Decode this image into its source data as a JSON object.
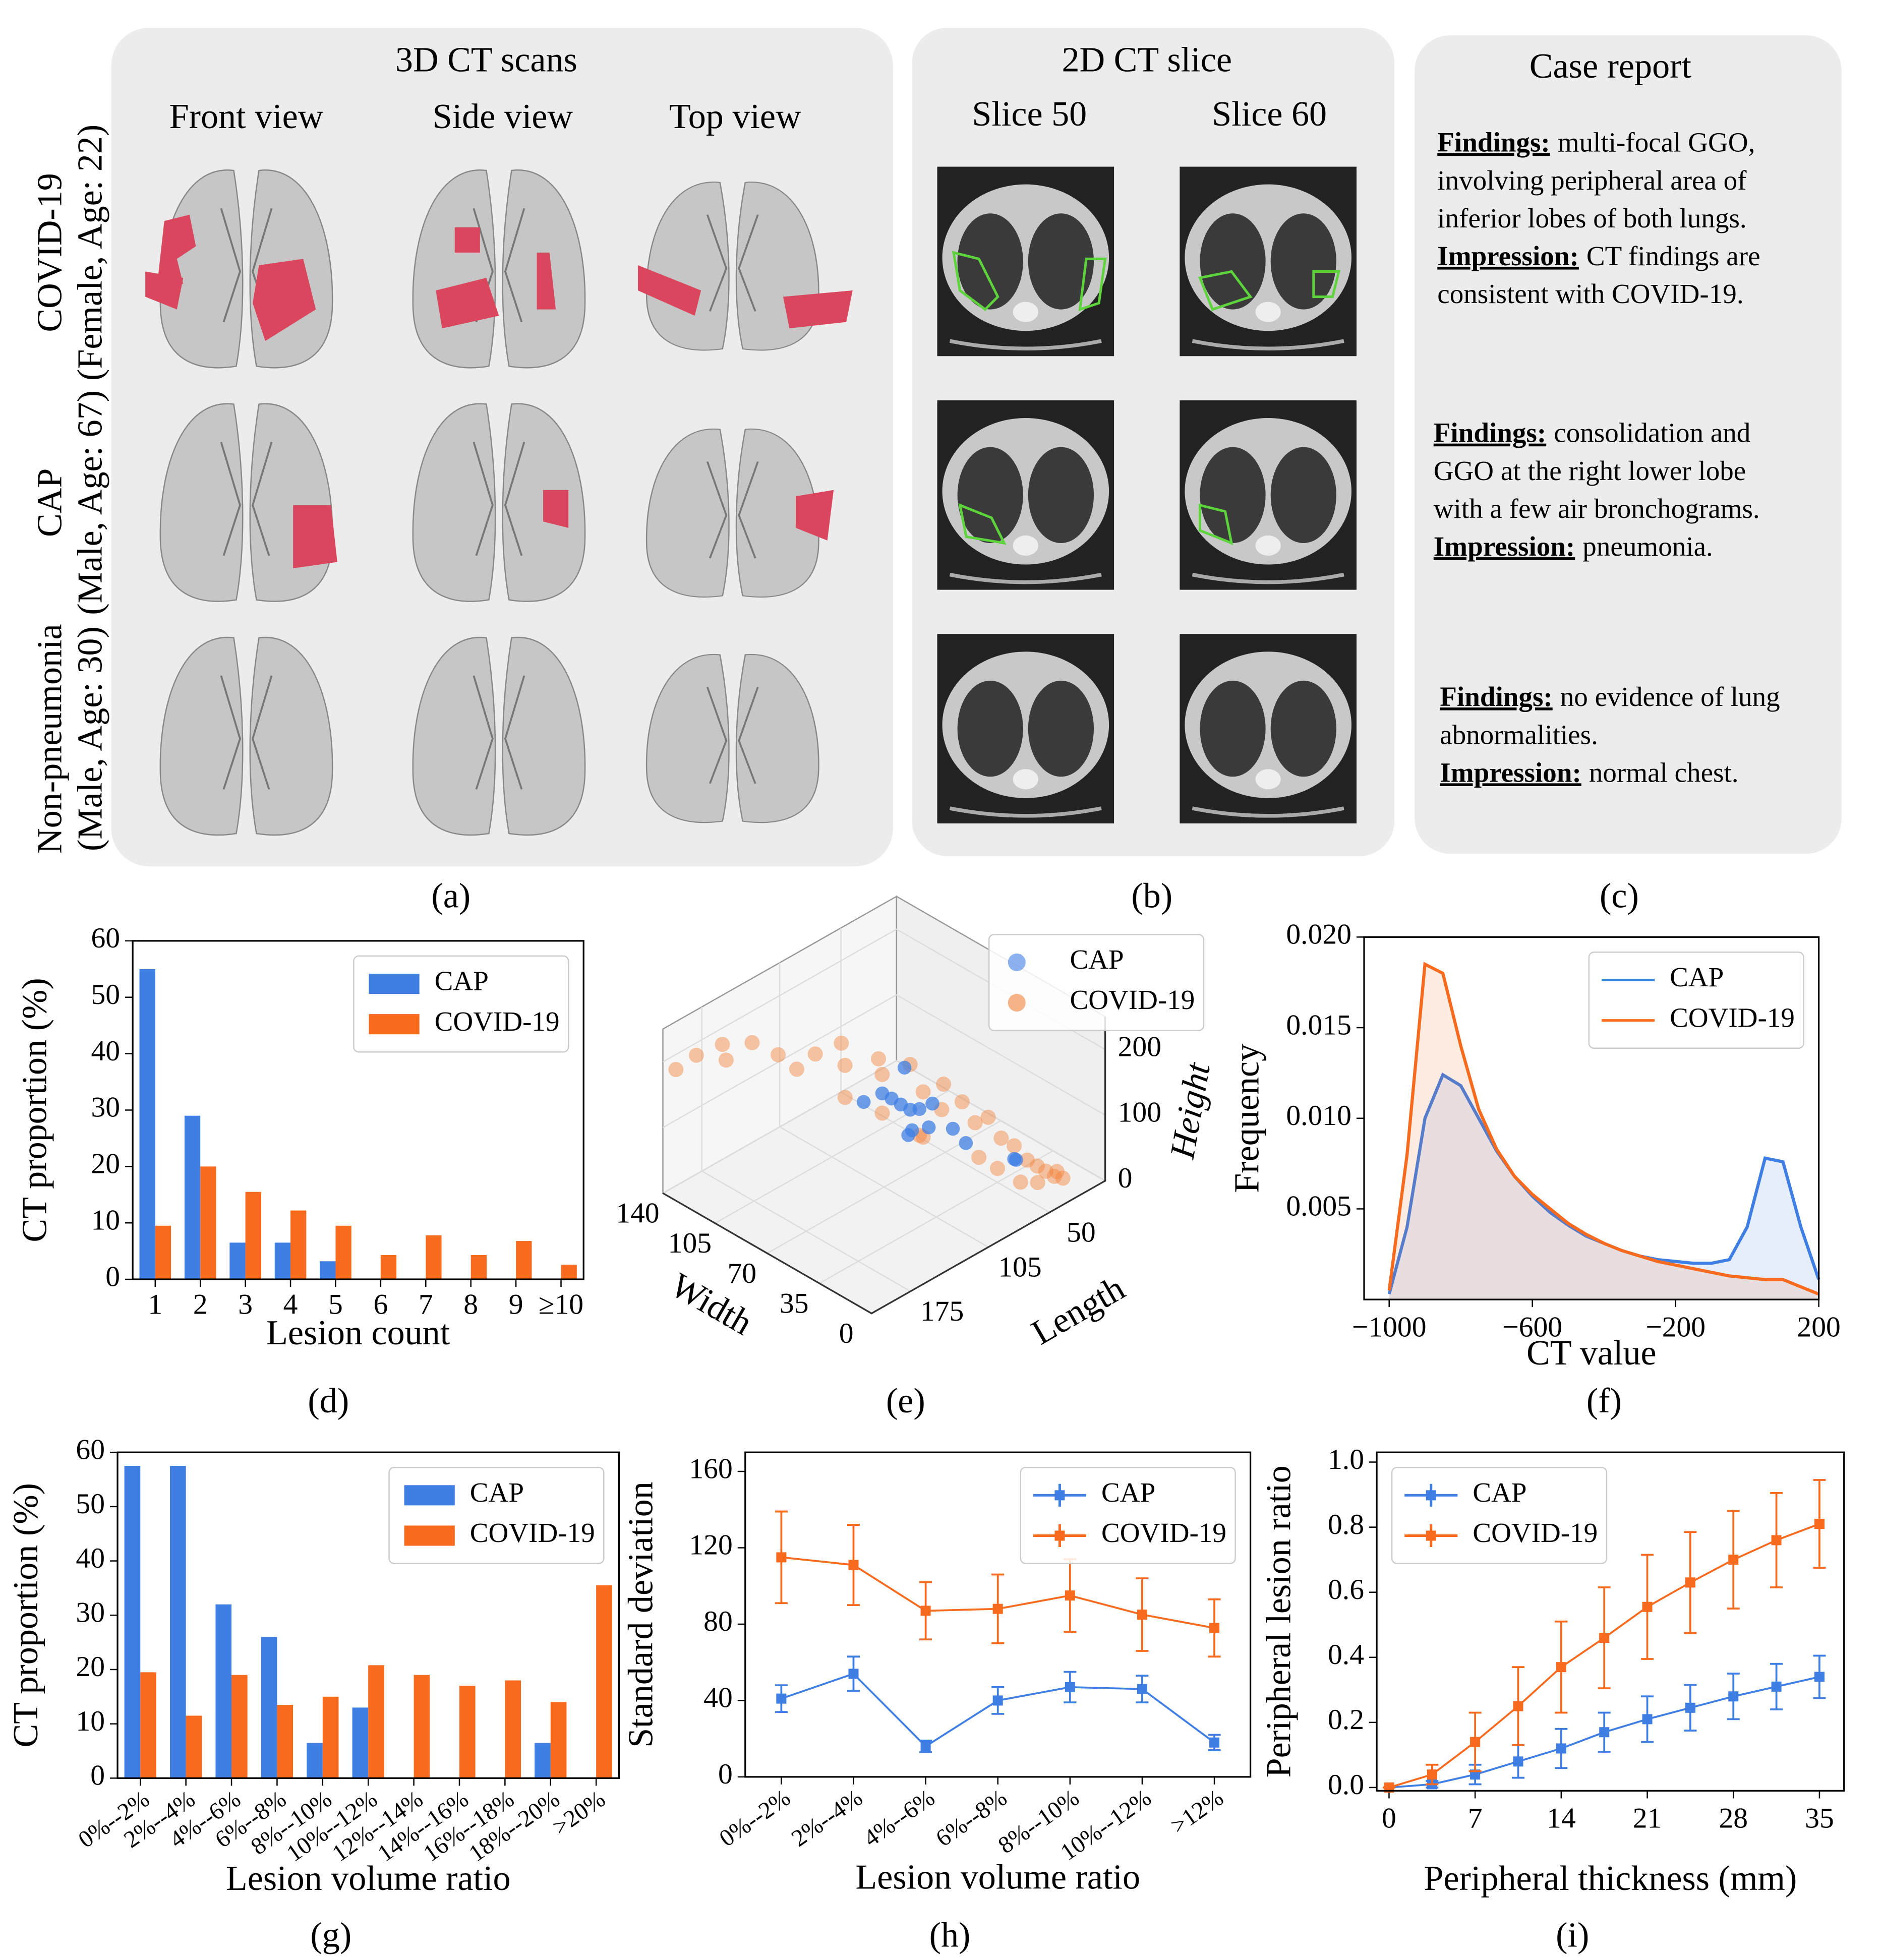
{
  "panels": {
    "a": {
      "title": "3D CT scans",
      "views": [
        "Front view",
        "Side view",
        "Top view"
      ],
      "caption": "(a)"
    },
    "rows": [
      {
        "label": "COVID-19",
        "patient": "(Female, Age: 22)"
      },
      {
        "label": "CAP",
        "patient": "(Male, Age: 67)"
      },
      {
        "label": "Non-pneumonia",
        "patient": "(Male, Age: 30)"
      }
    ],
    "b": {
      "title": "2D CT slice",
      "slices": [
        "Slice 50",
        "Slice 60"
      ],
      "caption": "(b)"
    },
    "c": {
      "title": "Case report",
      "caption": "(c)",
      "reports": [
        {
          "findings_label": "Findings:",
          "findings": [
            "multi-focal GGO,",
            "involving peripheral area of",
            "inferior lobes of both lungs."
          ],
          "impression_label": "Impression:",
          "impression": [
            "CT findings are",
            "consistent with COVID-19."
          ]
        },
        {
          "findings_label": "Findings:",
          "findings": [
            "consolidation and",
            "GGO at the right lower lobe",
            "with a few air bronchograms."
          ],
          "impression_label": "Impression:",
          "impression": [
            "pneumonia."
          ]
        },
        {
          "findings_label": "Findings:",
          "findings": [
            "no evidence of lung",
            "abnormalities."
          ],
          "impression_label": "Impression:",
          "impression": [
            "normal chest."
          ]
        }
      ]
    }
  },
  "chart_data": [
    {
      "type": "bar",
      "caption": "(d)",
      "xlabel": "Lesion count",
      "ylabel": "CT proportion (%)",
      "categories": [
        "1",
        "2",
        "3",
        "4",
        "5",
        "6",
        "7",
        "8",
        "9",
        "≥10"
      ],
      "series": [
        {
          "name": "CAP",
          "color": "#3f7fe4",
          "values": [
            55,
            29,
            6.5,
            6.5,
            3.2,
            0,
            0,
            0,
            0,
            0
          ]
        },
        {
          "name": "COVID-19",
          "color": "#f86a1d",
          "values": [
            9.5,
            20,
            15.5,
            12.2,
            9.5,
            4.3,
            7.8,
            4.3,
            6.8,
            2.6
          ]
        }
      ],
      "ylim": [
        0,
        60
      ],
      "yticks": [
        0,
        10,
        20,
        30,
        40,
        50,
        60
      ],
      "legend": "upper right"
    },
    {
      "type": "scatter3d",
      "caption": "(e)",
      "xlabel": "Length",
      "ylabel": "Width",
      "zlabel": "Height",
      "xlim": [
        0,
        210
      ],
      "xticks": [
        50,
        105,
        175
      ],
      "ylim": [
        0,
        140
      ],
      "yticks": [
        0,
        35,
        70,
        105,
        140
      ],
      "zlim": [
        0,
        250
      ],
      "zticks": [
        0,
        100,
        200
      ],
      "legend": "upper right",
      "series": [
        {
          "name": "CAP",
          "color": "#3f7fe4",
          "x": [
            120,
            110,
            100,
            115,
            105,
            95,
            125,
            90,
            130,
            100,
            85,
            60,
            55,
            110,
            120
          ],
          "y": [
            60,
            55,
            50,
            45,
            40,
            45,
            50,
            35,
            65,
            60,
            30,
            15,
            20,
            50,
            40
          ],
          "z": [
            170,
            150,
            140,
            160,
            130,
            150,
            180,
            120,
            160,
            190,
            100,
            70,
            60,
            110,
            140
          ]
        },
        {
          "name": "COVID-19",
          "color": "#f4823a",
          "x": [
            200,
            205,
            190,
            180,
            170,
            160,
            150,
            140,
            130,
            120,
            110,
            100,
            95,
            90,
            85,
            80,
            75,
            70,
            65,
            60,
            55,
            50,
            45,
            40,
            35,
            30,
            60,
            50,
            70,
            80,
            120,
            140,
            100,
            110,
            30
          ],
          "y": [
            125,
            135,
            115,
            120,
            110,
            100,
            95,
            90,
            80,
            85,
            70,
            75,
            60,
            55,
            45,
            50,
            40,
            35,
            30,
            25,
            20,
            15,
            12,
            10,
            8,
            6,
            12,
            8,
            20,
            25,
            60,
            70,
            50,
            40,
            10
          ],
          "z": [
            220,
            190,
            240,
            200,
            230,
            215,
            190,
            210,
            230,
            180,
            200,
            160,
            190,
            150,
            170,
            120,
            140,
            110,
            120,
            90,
            80,
            60,
            50,
            40,
            30,
            25,
            40,
            35,
            60,
            80,
            140,
            170,
            100,
            120,
            30
          ]
        }
      ]
    },
    {
      "type": "line",
      "fill": true,
      "caption": "(f)",
      "xlabel": "CT value",
      "ylabel": "Frequency",
      "x": [
        -1000,
        -950,
        -900,
        -850,
        -800,
        -750,
        -700,
        -650,
        -600,
        -550,
        -500,
        -450,
        -400,
        -350,
        -300,
        -250,
        -200,
        -150,
        -100,
        -50,
        0,
        50,
        100,
        150,
        200
      ],
      "series": [
        {
          "name": "CAP",
          "color": "#3f7fe4",
          "values": [
            0.0003,
            0.004,
            0.01,
            0.0124,
            0.0118,
            0.01,
            0.0082,
            0.0068,
            0.0057,
            0.0048,
            0.0041,
            0.0035,
            0.0031,
            0.0027,
            0.0024,
            0.0022,
            0.0021,
            0.002,
            0.002,
            0.0022,
            0.004,
            0.0078,
            0.0076,
            0.004,
            0.0011
          ]
        },
        {
          "name": "COVID-19",
          "color": "#f86a1d",
          "values": [
            0.0005,
            0.008,
            0.0185,
            0.018,
            0.014,
            0.0105,
            0.0083,
            0.0068,
            0.0058,
            0.005,
            0.0042,
            0.0036,
            0.0031,
            0.0027,
            0.0024,
            0.0021,
            0.0019,
            0.0017,
            0.0015,
            0.0013,
            0.0012,
            0.0011,
            0.0011,
            0.0007,
            0.0003
          ]
        }
      ],
      "xlim": [
        -1070,
        200
      ],
      "xticks": [
        {
          "value": -1000,
          "label": "−1000"
        },
        {
          "value": -600,
          "label": "−600"
        },
        {
          "value": -200,
          "label": "−200"
        },
        200
      ],
      "ylim": [
        0,
        0.02
      ],
      "yticks": [
        0.005,
        {
          "value": 0.01,
          "label": "0.010"
        },
        0.015,
        {
          "value": 0.02,
          "label": "0.020"
        }
      ],
      "legend": "upper right"
    },
    {
      "type": "bar",
      "caption": "(g)",
      "xlabel": "Lesion volume ratio",
      "ylabel": "CT proportion (%)",
      "categories": [
        "0%--2%",
        "2%--4%",
        "4%--6%",
        "6%--8%",
        "8%--10%",
        "10%--12%",
        "12%--14%",
        "14%--16%",
        "16%--18%",
        "18%--20%",
        ">20%"
      ],
      "series": [
        {
          "name": "CAP",
          "color": "#3f7fe4",
          "values": [
            57.5,
            57.5,
            32,
            26,
            6.5,
            13,
            0,
            0,
            0,
            6.5,
            0
          ]
        },
        {
          "name": "COVID-19",
          "color": "#f86a1d",
          "values": [
            19.5,
            11.5,
            19,
            13.5,
            15,
            20.8,
            19,
            17,
            18,
            14,
            35.5
          ]
        }
      ],
      "ylim": [
        0,
        60
      ],
      "yticks": [
        0,
        10,
        20,
        30,
        40,
        50,
        60
      ],
      "legend": "upper right"
    },
    {
      "type": "errorbar",
      "caption": "(h)",
      "xlabel": "Lesion volume ratio",
      "ylabel": "Standard deviation",
      "categories": [
        "0%--2%",
        "2%--4%",
        "4%--6%",
        "6%--8%",
        "8%--10%",
        "10%--12%",
        ">12%"
      ],
      "series": [
        {
          "name": "CAP",
          "color": "#3f7fe4",
          "values": [
            41,
            54,
            16,
            40,
            47,
            46,
            18
          ],
          "errors": [
            7,
            9,
            3,
            7,
            8,
            7,
            4
          ]
        },
        {
          "name": "COVID-19",
          "color": "#f86a1d",
          "values": [
            115,
            111,
            87,
            88,
            95,
            85,
            78
          ],
          "errors": [
            24,
            21,
            15,
            18,
            19,
            19,
            15
          ]
        }
      ],
      "ylim": [
        0,
        170
      ],
      "yticks": [
        0,
        40,
        80,
        120,
        160
      ],
      "legend": "upper right"
    },
    {
      "type": "errorbar",
      "caption": "(i)",
      "xlabel": "Peripheral thickness (mm)",
      "ylabel": "Peripheral lesion ratio",
      "x": [
        0,
        3.5,
        7,
        10.5,
        14,
        17.5,
        21,
        24.5,
        28,
        31.5,
        35
      ],
      "series": [
        {
          "name": "CAP",
          "color": "#3f7fe4",
          "values": [
            0,
            0.01,
            0.04,
            0.08,
            0.12,
            0.17,
            0.21,
            0.245,
            0.28,
            0.31,
            0.34
          ],
          "errors": [
            0,
            0.01,
            0.03,
            0.05,
            0.06,
            0.06,
            0.07,
            0.07,
            0.07,
            0.07,
            0.065
          ]
        },
        {
          "name": "COVID-19",
          "color": "#f86a1d",
          "values": [
            0,
            0.04,
            0.14,
            0.25,
            0.37,
            0.46,
            0.555,
            0.63,
            0.7,
            0.76,
            0.81
          ],
          "errors": [
            0,
            0.03,
            0.09,
            0.12,
            0.14,
            0.155,
            0.16,
            0.155,
            0.15,
            0.145,
            0.135
          ]
        }
      ],
      "xlim": [
        -1,
        37
      ],
      "xticks": [
        0,
        7,
        14,
        21,
        28,
        35
      ],
      "ylim": [
        -0.01,
        1.03
      ],
      "yticks": [
        {
          "value": 0,
          "label": "0.0"
        },
        0.2,
        0.4,
        0.6,
        0.8,
        {
          "value": 1,
          "label": "1.0"
        }
      ],
      "legend": "upper left"
    }
  ]
}
